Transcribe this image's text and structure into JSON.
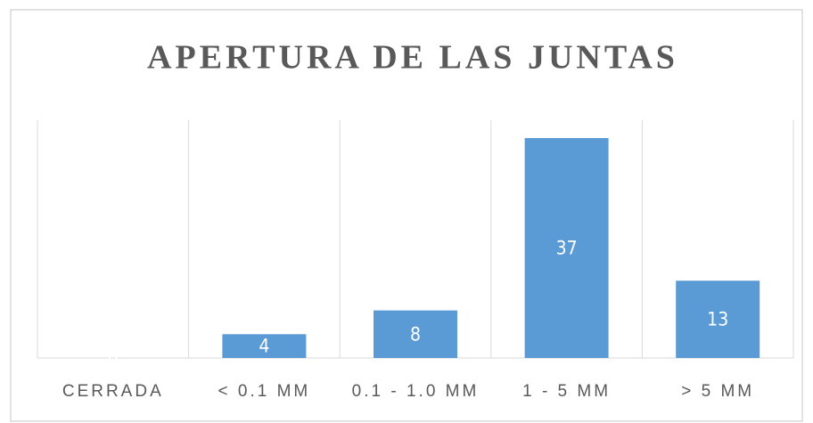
{
  "chart_data": {
    "type": "bar",
    "title": "APERTURA DE LAS JUNTAS",
    "categories": [
      "CERRADA",
      "< 0.1 MM",
      "0.1 - 1.0 MM",
      "1 - 5 MM",
      "> 5 MM"
    ],
    "values": [
      0,
      4,
      8,
      37,
      13
    ],
    "color": "#5b9bd5",
    "ylim": [
      0,
      40
    ],
    "grid": false
  }
}
